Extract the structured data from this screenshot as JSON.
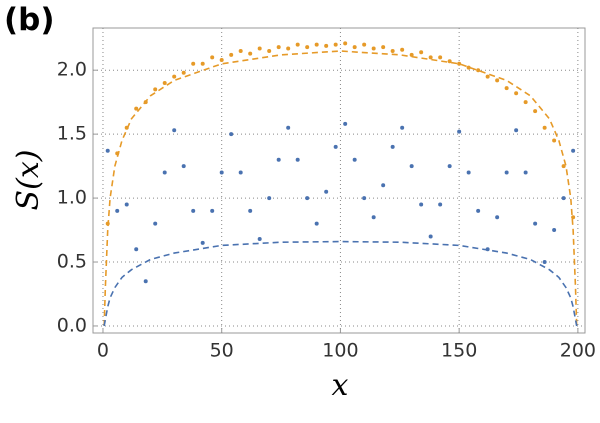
{
  "chart_data": {
    "type": "scatter",
    "panel_label": "(b)",
    "x_label": "x",
    "y_label": "S(x)",
    "xlim": [
      -4.2,
      203
    ],
    "ylim": [
      -0.055,
      2.33
    ],
    "xticks": [
      0,
      50,
      100,
      150,
      200
    ],
    "yticks": [
      {
        "value": 0,
        "label": "0.0"
      },
      0.5,
      {
        "value": 1,
        "label": "1.0"
      },
      1.5,
      {
        "value": 2,
        "label": "2.0"
      }
    ],
    "grid": true,
    "series": [
      {
        "color": "#e69a28",
        "dashed": true,
        "x": [
          0.5,
          1,
          2,
          3,
          5,
          8,
          12,
          20,
          30,
          50,
          75,
          100,
          125,
          150,
          170,
          180,
          188,
          192,
          195,
          197,
          198,
          199,
          199.5
        ],
        "values": [
          0,
          0.3,
          0.75,
          1.0,
          1.25,
          1.45,
          1.62,
          1.8,
          1.92,
          2.05,
          2.12,
          2.15,
          2.12,
          2.05,
          1.92,
          1.8,
          1.62,
          1.45,
          1.25,
          1.0,
          0.75,
          0.3,
          0
        ]
      },
      {
        "color": "#4a72b0",
        "dashed": true,
        "x": [
          0.5,
          1,
          2,
          3,
          5,
          8,
          12,
          20,
          30,
          50,
          75,
          100,
          125,
          150,
          170,
          180,
          188,
          192,
          195,
          197,
          198,
          199,
          199.5
        ],
        "values": [
          0,
          0.05,
          0.15,
          0.22,
          0.3,
          0.38,
          0.44,
          0.52,
          0.57,
          0.63,
          0.655,
          0.66,
          0.655,
          0.63,
          0.57,
          0.52,
          0.44,
          0.38,
          0.3,
          0.22,
          0.15,
          0.05,
          0
        ]
      },
      {
        "color": "#e69a28",
        "dashed": false,
        "x": [
          2,
          6,
          10,
          14,
          18,
          22,
          26,
          30,
          34,
          38,
          42,
          46,
          50,
          54,
          58,
          62,
          66,
          70,
          74,
          78,
          82,
          86,
          90,
          94,
          98,
          102,
          106,
          110,
          114,
          118,
          122,
          126,
          130,
          134,
          138,
          142,
          146,
          150,
          154,
          158,
          162,
          166,
          170,
          174,
          178,
          182,
          186,
          190,
          194,
          198
        ],
        "values": [
          0.8,
          1.35,
          1.55,
          1.7,
          1.75,
          1.85,
          1.9,
          1.95,
          1.98,
          2.05,
          2.05,
          2.1,
          2.08,
          2.12,
          2.15,
          2.13,
          2.17,
          2.15,
          2.18,
          2.17,
          2.2,
          2.18,
          2.2,
          2.19,
          2.2,
          2.21,
          2.18,
          2.2,
          2.17,
          2.18,
          2.15,
          2.16,
          2.12,
          2.14,
          2.1,
          2.1,
          2.07,
          2.05,
          2.02,
          2.0,
          1.95,
          1.92,
          1.86,
          1.82,
          1.75,
          1.68,
          1.55,
          1.45,
          1.25,
          0.85
        ]
      },
      {
        "color": "#4a72b0",
        "dashed": false,
        "x": [
          2,
          6,
          10,
          14,
          18,
          22,
          26,
          30,
          34,
          38,
          42,
          46,
          50,
          54,
          58,
          62,
          66,
          70,
          74,
          78,
          82,
          86,
          90,
          94,
          98,
          102,
          106,
          110,
          114,
          118,
          122,
          126,
          130,
          134,
          138,
          142,
          146,
          150,
          154,
          158,
          162,
          166,
          170,
          174,
          178,
          182,
          186,
          190,
          194,
          198
        ],
        "values": [
          1.37,
          0.9,
          0.95,
          0.6,
          0.35,
          0.8,
          1.2,
          1.53,
          1.25,
          0.9,
          0.65,
          0.9,
          1.2,
          1.5,
          1.2,
          0.9,
          0.68,
          1.0,
          1.3,
          1.55,
          1.3,
          1.0,
          0.8,
          1.05,
          1.4,
          1.58,
          1.3,
          1.0,
          0.85,
          1.1,
          1.4,
          1.55,
          1.25,
          0.95,
          0.7,
          0.95,
          1.25,
          1.52,
          1.2,
          0.9,
          0.6,
          0.85,
          1.2,
          1.53,
          1.2,
          0.8,
          0.5,
          0.75,
          1.0,
          1.37
        ]
      }
    ]
  }
}
